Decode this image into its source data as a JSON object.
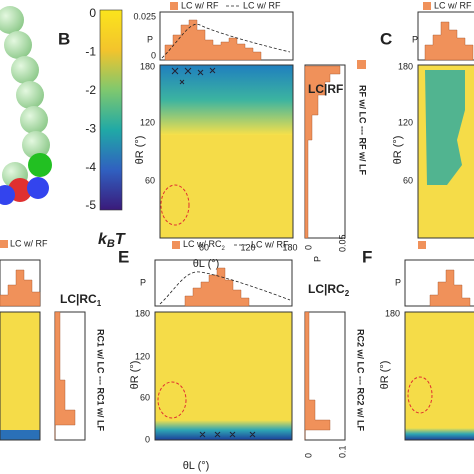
{
  "colorbar": {
    "ticks": [
      "0",
      "-1",
      "-2",
      "-3",
      "-4",
      "-5"
    ],
    "label": [
      "k",
      "B",
      "T"
    ]
  },
  "panels": {
    "B": {
      "label": "B",
      "legend": [
        "LC w/ RF",
        "LC w/ RF"
      ],
      "p_label": "P",
      "top_ticks": [
        "0.025",
        "0"
      ],
      "side_label": "LC|RF",
      "yticks": [
        "180",
        "120",
        "60"
      ],
      "xticks": [
        "60",
        "120",
        "180"
      ],
      "xlabel": "θL (°)",
      "ylabel": "θR (°)",
      "side_ticks": [
        "0",
        "0.05"
      ],
      "side_legend": "RF w/ LC --- RF w/ LF"
    },
    "C": {
      "label": "C",
      "legend": "LC w/ RF",
      "p_label": "P",
      "yticks": [
        "180",
        "120",
        "60"
      ],
      "ylabel": "θR (°)"
    },
    "D": {
      "legend": "LC w/ RF",
      "side_label": [
        "LC|RC",
        "1"
      ],
      "side_legend": "RC1 w/ LC --- RC1 w/ LF"
    },
    "E": {
      "label": "E",
      "legend": [
        "LC w/ RC",
        "2",
        "LC w/ RF"
      ],
      "p_label": "P",
      "yticks": [
        "180",
        "120",
        "60",
        "0"
      ],
      "xlabel": "θL (°)",
      "ylabel": "θR (°)",
      "side_label": [
        "LC|RC",
        "2"
      ],
      "side_ticks": [
        "0",
        "0.1"
      ],
      "side_legend": "RC2 w/ LC --- RC2 w/ LF"
    },
    "F": {
      "label": "F",
      "p_label": "P",
      "yticks": [
        "180"
      ],
      "ylabel": "θR (°)"
    }
  }
}
